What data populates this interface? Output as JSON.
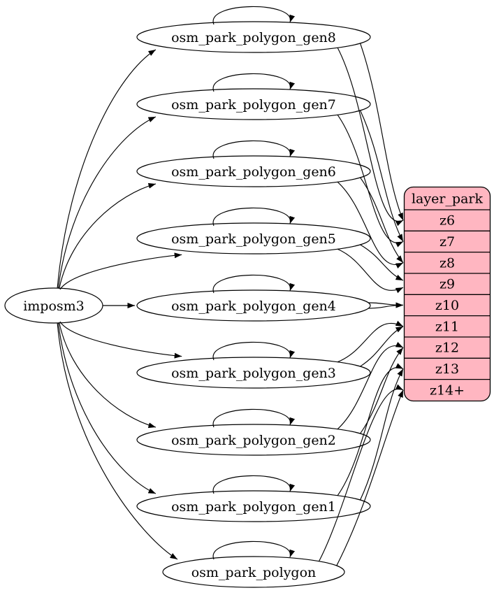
{
  "diagram": {
    "source": {
      "id": "imposm3",
      "label": "imposm3"
    },
    "tables": [
      {
        "id": "osm_park_polygon_gen8",
        "label": "osm_park_polygon_gen8"
      },
      {
        "id": "osm_park_polygon_gen7",
        "label": "osm_park_polygon_gen7"
      },
      {
        "id": "osm_park_polygon_gen6",
        "label": "osm_park_polygon_gen6"
      },
      {
        "id": "osm_park_polygon_gen5",
        "label": "osm_park_polygon_gen5"
      },
      {
        "id": "osm_park_polygon_gen4",
        "label": "osm_park_polygon_gen4"
      },
      {
        "id": "osm_park_polygon_gen3",
        "label": "osm_park_polygon_gen3"
      },
      {
        "id": "osm_park_polygon_gen2",
        "label": "osm_park_polygon_gen2"
      },
      {
        "id": "osm_park_polygon_gen1",
        "label": "osm_park_polygon_gen1"
      },
      {
        "id": "osm_park_polygon",
        "label": "osm_park_polygon"
      }
    ],
    "layer": {
      "id": "layer_park",
      "title": "layer_park",
      "rows": [
        "z6",
        "z7",
        "z8",
        "z9",
        "z10",
        "z11",
        "z12",
        "z13",
        "z14+"
      ]
    },
    "edges": {
      "imports": [
        {
          "from": "imposm3",
          "to": "osm_park_polygon_gen8"
        },
        {
          "from": "imposm3",
          "to": "osm_park_polygon_gen7"
        },
        {
          "from": "imposm3",
          "to": "osm_park_polygon_gen6"
        },
        {
          "from": "imposm3",
          "to": "osm_park_polygon_gen5"
        },
        {
          "from": "imposm3",
          "to": "osm_park_polygon_gen4"
        },
        {
          "from": "imposm3",
          "to": "osm_park_polygon_gen3"
        },
        {
          "from": "imposm3",
          "to": "osm_park_polygon_gen2"
        },
        {
          "from": "imposm3",
          "to": "osm_park_polygon_gen1"
        },
        {
          "from": "imposm3",
          "to": "osm_park_polygon"
        }
      ],
      "self_updates": [
        "osm_park_polygon_gen8",
        "osm_park_polygon_gen7",
        "osm_park_polygon_gen6",
        "osm_park_polygon_gen5",
        "osm_park_polygon_gen4",
        "osm_park_polygon_gen3",
        "osm_park_polygon_gen2",
        "osm_park_polygon_gen1",
        "osm_park_polygon"
      ],
      "layer_inputs": [
        {
          "from": "osm_park_polygon_gen8",
          "to_row": "z6",
          "count": 2
        },
        {
          "from": "osm_park_polygon_gen7",
          "to_row": "z7",
          "count": 2
        },
        {
          "from": "osm_park_polygon_gen6",
          "to_row": "z8",
          "count": 2
        },
        {
          "from": "osm_park_polygon_gen5",
          "to_row": "z9",
          "count": 2
        },
        {
          "from": "osm_park_polygon_gen4",
          "to_row": "z10",
          "count": 2
        },
        {
          "from": "osm_park_polygon_gen3",
          "to_row": "z11",
          "count": 2
        },
        {
          "from": "osm_park_polygon_gen2",
          "to_row": "z12",
          "count": 2
        },
        {
          "from": "osm_park_polygon_gen1",
          "to_row": "z13",
          "count": 2
        },
        {
          "from": "osm_park_polygon",
          "to_row": "z14+",
          "count": 2
        }
      ]
    },
    "colors": {
      "layer_fill": "#ffb6c1",
      "node_fill": "#ffffff",
      "stroke": "#000000",
      "text": "#000000",
      "background": "#ffffff"
    }
  }
}
